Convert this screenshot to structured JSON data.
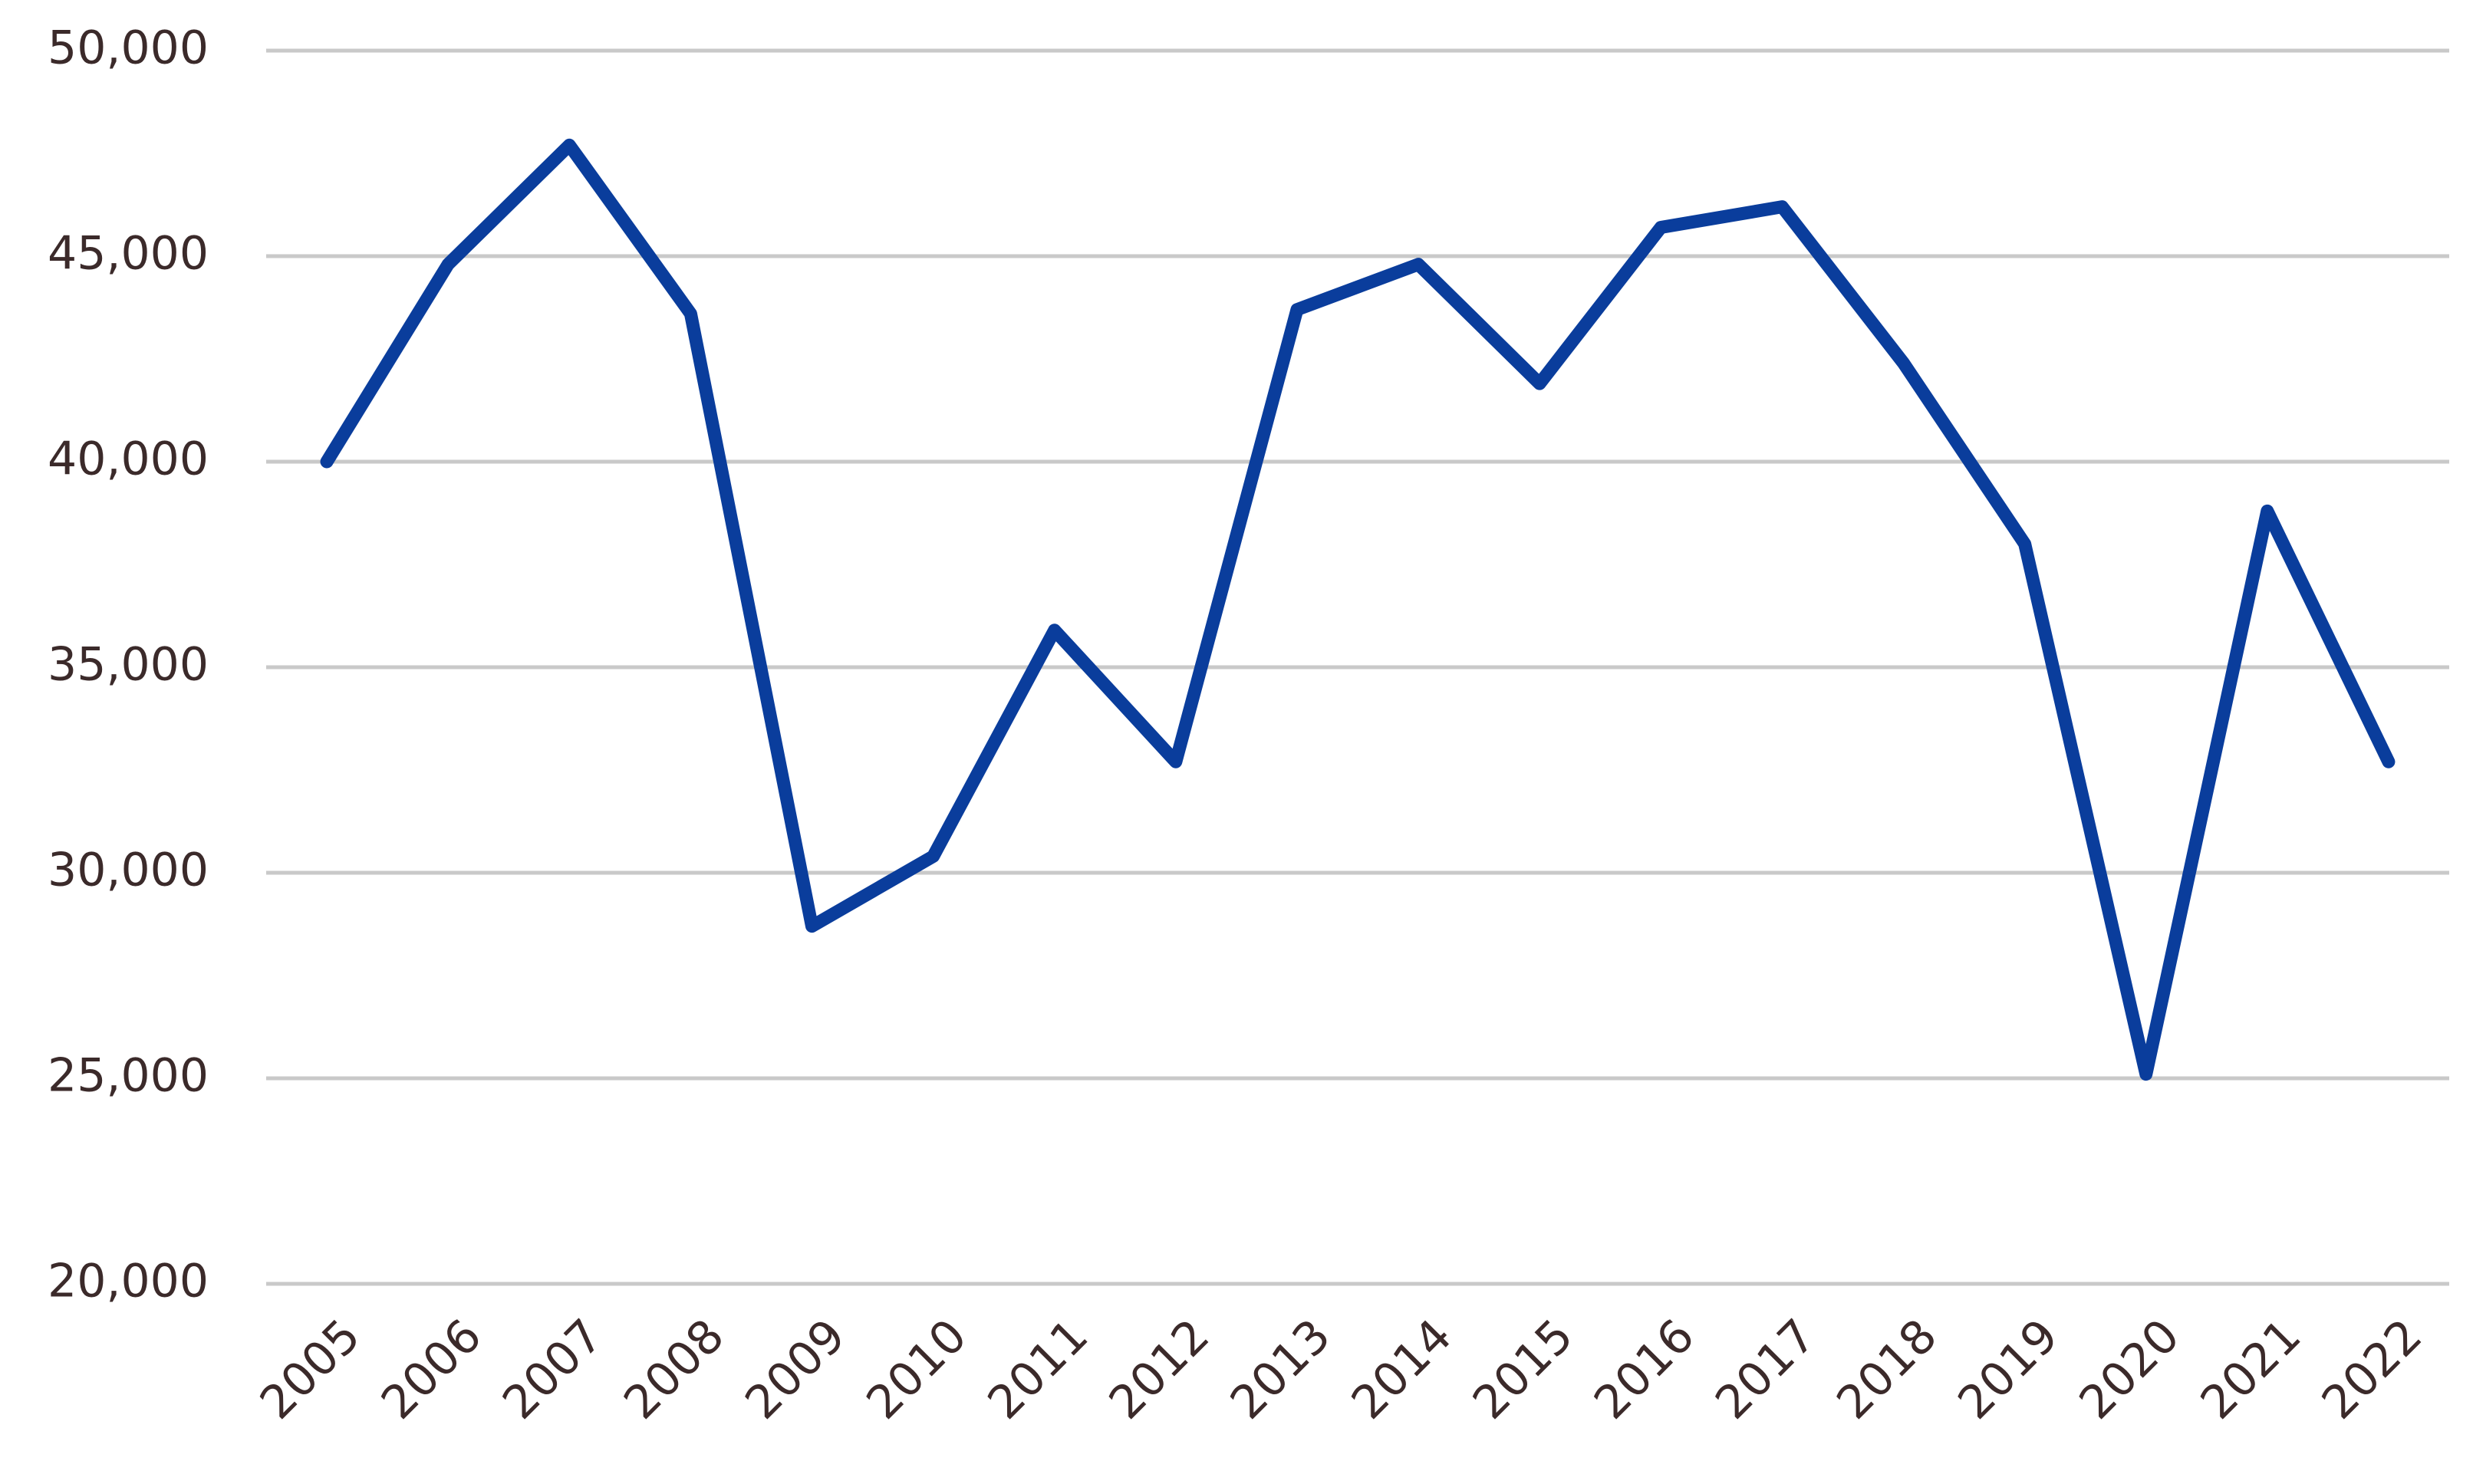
{
  "chart_data": {
    "type": "line",
    "categories": [
      "2005",
      "2006",
      "2007",
      "2008",
      "2009",
      "2010",
      "2011",
      "2012",
      "2013",
      "2014",
      "2015",
      "2016",
      "2017",
      "2018",
      "2019",
      "2020",
      "2021",
      "2022"
    ],
    "values": [
      40000,
      44800,
      47700,
      43600,
      28700,
      30400,
      35900,
      32700,
      43700,
      44800,
      41900,
      45700,
      46200,
      42400,
      38000,
      25100,
      38800,
      32700
    ],
    "color": "#0a3d9c",
    "ylim": [
      20000,
      50000
    ],
    "yticks": [
      {
        "value": 20000,
        "label": "20,000"
      },
      {
        "value": 25000,
        "label": "25,000"
      },
      {
        "value": 30000,
        "label": "30,000"
      },
      {
        "value": 35000,
        "label": "35,000"
      },
      {
        "value": 40000,
        "label": "40,000"
      },
      {
        "value": 45000,
        "label": "45,000"
      },
      {
        "value": 50000,
        "label": "50,000"
      }
    ],
    "grid": true
  }
}
